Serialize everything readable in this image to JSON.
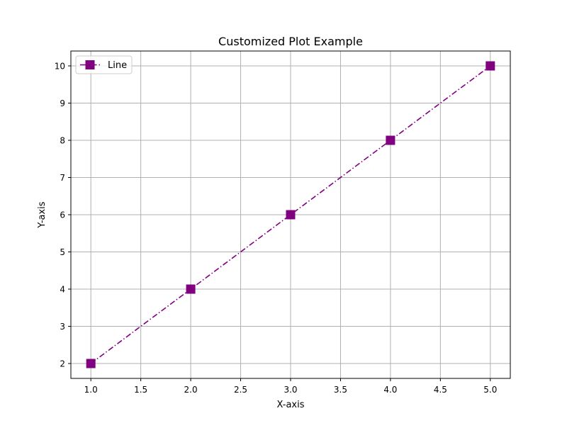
{
  "chart_data": {
    "type": "line",
    "title": "Customized Plot Example",
    "xlabel": "X-axis",
    "ylabel": "Y-axis",
    "xlim": [
      0.8,
      5.2
    ],
    "ylim": [
      1.6,
      10.4
    ],
    "x_ticks": [
      1.0,
      1.5,
      2.0,
      2.5,
      3.0,
      3.5,
      4.0,
      4.5,
      5.0
    ],
    "x_tick_labels": [
      "1.0",
      "1.5",
      "2.0",
      "2.5",
      "3.0",
      "3.5",
      "4.0",
      "4.5",
      "5.0"
    ],
    "y_ticks": [
      2,
      3,
      4,
      5,
      6,
      7,
      8,
      9,
      10
    ],
    "y_tick_labels": [
      "2",
      "3",
      "4",
      "5",
      "6",
      "7",
      "8",
      "9",
      "10"
    ],
    "grid": true,
    "legend_position": "top-left",
    "series": [
      {
        "name": "Line",
        "x": [
          1,
          2,
          3,
          4,
          5
        ],
        "y": [
          2,
          4,
          6,
          8,
          10
        ],
        "color": "#800080",
        "line_style": "dashdot",
        "marker": "square"
      }
    ]
  }
}
